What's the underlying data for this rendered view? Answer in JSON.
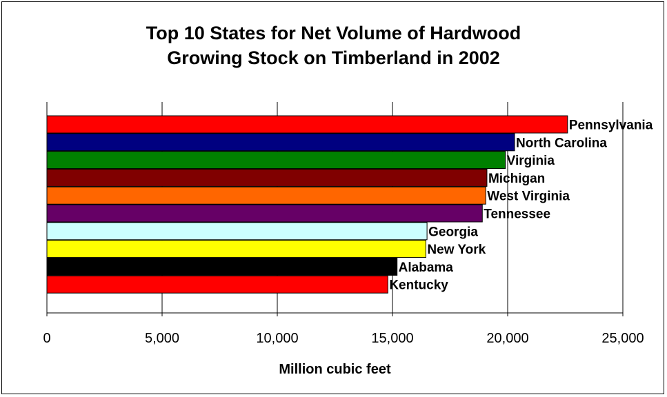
{
  "chart_data": {
    "type": "bar",
    "orientation": "horizontal",
    "title_lines": [
      "Top 10 States for Net Volume of Hardwood",
      "Growing Stock on Timberland in 2002"
    ],
    "xlabel": "Million cubic feet",
    "ylabel": "",
    "xlim": [
      0,
      25000
    ],
    "xticks": [
      0,
      5000,
      10000,
      15000,
      20000,
      25000
    ],
    "xtick_labels": [
      "0",
      "5,000",
      "10,000",
      "15,000",
      "20,000",
      "25,000"
    ],
    "grid": "vertical",
    "legend": "none",
    "categories": [
      "Pennsylvania",
      "North Carolina",
      "Virginia",
      "Michigan",
      "West Virginia",
      "Tennessee",
      "Georgia",
      "New York",
      "Alabama",
      "Kentucky"
    ],
    "values": [
      22600,
      20300,
      19900,
      19100,
      19050,
      18900,
      16500,
      16450,
      15200,
      14800
    ],
    "colors": [
      "#ff0000",
      "#000080",
      "#008000",
      "#800000",
      "#ff6600",
      "#660066",
      "#ccffff",
      "#ffff00",
      "#000000",
      "#ff0000"
    ]
  }
}
